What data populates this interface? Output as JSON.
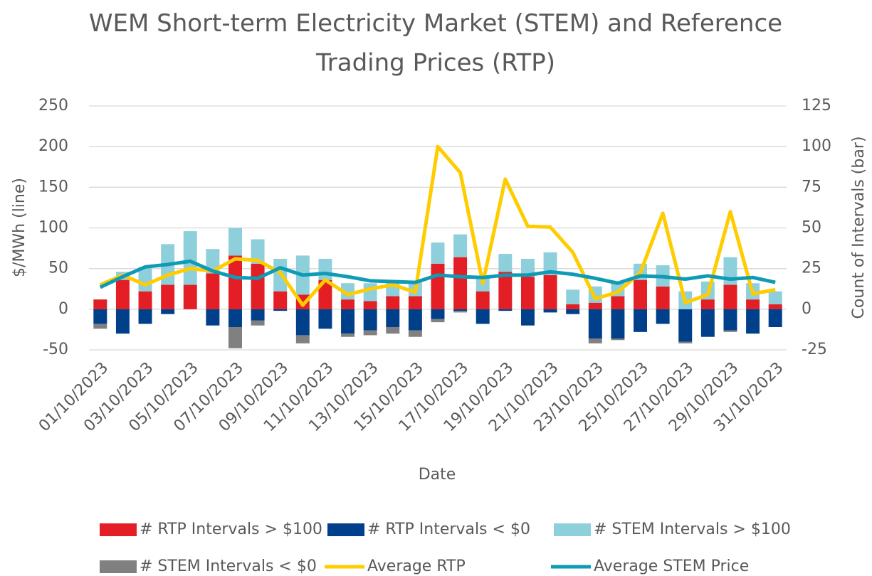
{
  "chart_data": {
    "type": "bar-line",
    "title": "WEM Short-term Electricity Market (STEM) and Reference Trading Prices (RTP)",
    "x_label": "Date",
    "y_label": "$/MWh (line)",
    "y2_label": "Count of Intervals (bar)",
    "categories": [
      "01/10/2023",
      null,
      "03/10/2023",
      null,
      "05/10/2023",
      null,
      "07/10/2023",
      null,
      "09/10/2023",
      null,
      "11/10/2023",
      null,
      "13/10/2023",
      null,
      "15/10/2023",
      null,
      "17/10/2023",
      null,
      "19/10/2023",
      null,
      "21/10/2023",
      null,
      "23/10/2023",
      null,
      "25/10/2023",
      null,
      "27/10/2023",
      null,
      "29/10/2023",
      null,
      "31/10/2023"
    ],
    "ylim": [
      -50,
      250
    ],
    "yticks": [
      -50,
      0,
      50,
      100,
      150,
      200,
      250
    ],
    "y2lim": [
      -25,
      125
    ],
    "y2ticks": [
      -25,
      0,
      25,
      50,
      75,
      100,
      125
    ],
    "grid": true,
    "legend": "bottom",
    "series": [
      {
        "name": "# RTP Intervals > $100",
        "type": "bar",
        "axis": "y2",
        "color": "#e31e24",
        "values": [
          6,
          18,
          11,
          15,
          15,
          22,
          33,
          28,
          11,
          9,
          18,
          6,
          5,
          8,
          8,
          28,
          32,
          11,
          23,
          20,
          21,
          3,
          4,
          8,
          18,
          14,
          0,
          6,
          15,
          6,
          3
        ]
      },
      {
        "name": "# RTP Intervals < $0",
        "type": "bar",
        "axis": "y2",
        "color": "#003f8a",
        "values": [
          -9,
          -15,
          -9,
          -3,
          0,
          -10,
          -11,
          -7,
          -1,
          -16,
          -12,
          -15,
          -13,
          -11,
          -13,
          -6,
          -1,
          -9,
          -1,
          -10,
          -2,
          -3,
          -18,
          -18,
          -14,
          -9,
          -20,
          -17,
          -13,
          -15,
          -11
        ]
      },
      {
        "name": "# STEM Intervals > $100",
        "type": "bar",
        "axis": "y2",
        "color": "#8ecfdc",
        "values": [
          0,
          5,
          15,
          25,
          33,
          15,
          17,
          15,
          20,
          24,
          13,
          10,
          11,
          10,
          9,
          13,
          14,
          9,
          11,
          11,
          14,
          9,
          10,
          9,
          10,
          13,
          11,
          11,
          17,
          10,
          8
        ]
      },
      {
        "name": "# STEM Intervals < $0",
        "type": "bar",
        "axis": "y2",
        "color": "#808080",
        "values": [
          -3,
          0,
          0,
          0,
          0,
          0,
          -13,
          -3,
          0,
          -5,
          0,
          -2,
          -3,
          -4,
          -4,
          -2,
          -1,
          0,
          0,
          0,
          0,
          0,
          -3,
          -1,
          0,
          0,
          -1,
          0,
          -1,
          0,
          0
        ]
      },
      {
        "name": "Average RTP",
        "type": "line",
        "color": "#ffcc00",
        "values": [
          30,
          42,
          30,
          42,
          50,
          47,
          62,
          60,
          45,
          5,
          36,
          18,
          25,
          30,
          21,
          200,
          168,
          32,
          160,
          102,
          101,
          70,
          13,
          21,
          45,
          118,
          8,
          18,
          120,
          19,
          24
        ]
      },
      {
        "name": "Average STEM Price",
        "type": "line",
        "color": "#0f9bb5",
        "values": [
          27,
          40,
          52,
          55,
          59,
          47,
          39,
          38,
          51,
          42,
          44,
          40,
          35,
          34,
          33,
          42,
          40,
          39,
          42,
          42,
          46,
          43,
          38,
          32,
          41,
          40,
          37,
          41,
          37,
          39,
          33
        ]
      }
    ]
  }
}
